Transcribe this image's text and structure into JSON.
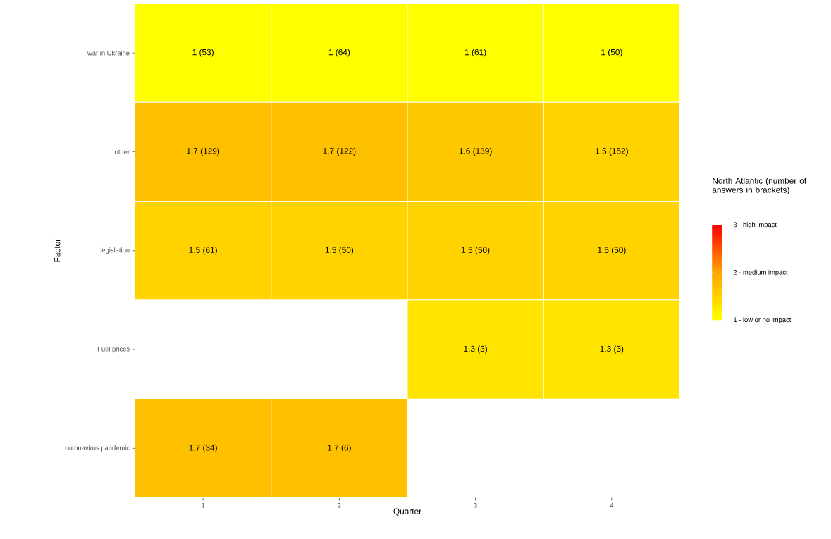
{
  "chart_data": {
    "type": "heatmap",
    "xlabel": "Quarter",
    "ylabel": "Factor",
    "clabel": "North Atlantic (number of answers in brackets)",
    "categories": [
      "1",
      "2",
      "3",
      "4"
    ],
    "y_categories": [
      "war in Ukraine",
      "other",
      "legislation",
      "Fuel prices",
      "coronavirus pandemic"
    ],
    "cells": [
      [
        1,
        1,
        1,
        1
      ],
      [
        1.7,
        1.7,
        1.6,
        1.5
      ],
      [
        1.5,
        1.5,
        1.5,
        1.5
      ],
      [
        null,
        null,
        1.3,
        1.3
      ],
      [
        1.7,
        1.7,
        null,
        null
      ]
    ],
    "cell_labels": [
      [
        "1 (53)",
        "1 (64)",
        "1 (61)",
        "1 (50)"
      ],
      [
        "1.7 (129)",
        "1.7 (122)",
        "1.6 (139)",
        "1.5 (152)"
      ],
      [
        "1.5 (61)",
        "1.5 (50)",
        "1.5 (50)",
        "1.5 (50)"
      ],
      [
        null,
        null,
        "1.3 (3)",
        "1.3 (3)"
      ],
      [
        "1.7 (34)",
        "1.7 (6)",
        null,
        null
      ]
    ],
    "clim": [
      1,
      3
    ],
    "cticks": [
      {
        "value": 1,
        "label": "1 - low or no impact"
      },
      {
        "value": 2,
        "label": "2 - medium impact"
      },
      {
        "value": 3,
        "label": "3 - high impact"
      }
    ]
  }
}
